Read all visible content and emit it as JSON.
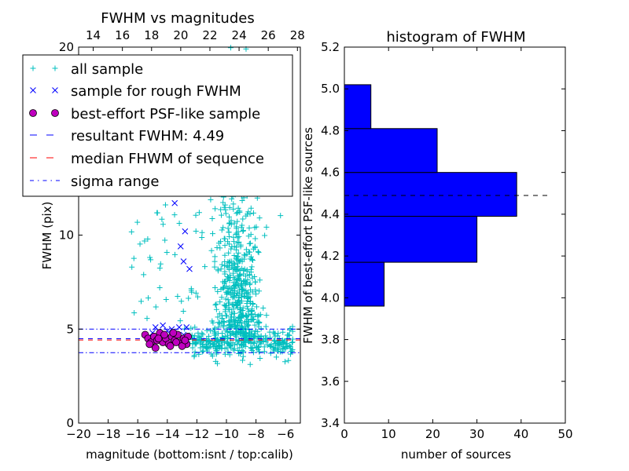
{
  "colors": {
    "all_sample": "#00bfbf",
    "rough_sample": "#0000ff",
    "psf_face": "#bf00bf",
    "resultant_line": "#0000ff",
    "median_line": "#ff0000",
    "sigma_line": "#0000ff",
    "hist_bar": "#0000ff",
    "hist_line": "#000000"
  },
  "chart_data": [
    {
      "type": "scatter",
      "title": "FWHM vs magnitudes",
      "xlabel": "magnitude (bottom:isnt / top:calib)",
      "ylabel": "FWHM (pix)",
      "xlim": [
        -20,
        -5
      ],
      "ylim": [
        0,
        20
      ],
      "top_xlim": [
        13,
        28.2
      ],
      "xticks": [
        -20,
        -18,
        -16,
        -14,
        -12,
        -10,
        -8,
        -6
      ],
      "xtick_labels": [
        "−20",
        "−18",
        "−16",
        "−14",
        "−12",
        "−10",
        "−8",
        "−6"
      ],
      "top_xticks": [
        14,
        16,
        18,
        20,
        22,
        24,
        26,
        28
      ],
      "top_xtick_labels": [
        "14",
        "16",
        "18",
        "20",
        "22",
        "24",
        "26",
        "28"
      ],
      "yticks": [
        0,
        5,
        10,
        20
      ],
      "ytick_labels": [
        "0",
        "5",
        "10",
        "20"
      ],
      "legend": {
        "location": "upper-left",
        "entries": [
          "all sample",
          "sample for rough FWHM",
          "best-effort PSF-like sample",
          "resultant FWHM: 4.49",
          "median FHWM of sequence",
          "sigma range"
        ]
      },
      "hlines": {
        "resultant_fwhm": 4.49,
        "median_fwhm": 4.42,
        "sigma_upper": 5.0,
        "sigma_lower": 3.75
      },
      "series": [
        {
          "name": "sample for rough FWHM",
          "marker": "x",
          "points": [
            [
              -13.5,
              11.7
            ],
            [
              -12.8,
              10.2
            ],
            [
              -13.1,
              9.4
            ],
            [
              -12.9,
              8.6
            ],
            [
              -12.5,
              8.2
            ],
            [
              -14.8,
              5.1
            ],
            [
              -14.3,
              5.2
            ],
            [
              -13.7,
              5.0
            ],
            [
              -13.2,
              5.1
            ],
            [
              -12.7,
              5.1
            ],
            [
              -14.0,
              4.9
            ],
            [
              -15.0,
              4.8
            ],
            [
              -12.9,
              4.7
            ],
            [
              -13.5,
              4.7
            ],
            [
              -14.5,
              4.7
            ]
          ]
        },
        {
          "name": "best-effort PSF-like sample",
          "marker": "o",
          "points": [
            [
              -15.5,
              4.7
            ],
            [
              -15.3,
              4.5
            ],
            [
              -15.1,
              4.3
            ],
            [
              -14.9,
              4.6
            ],
            [
              -14.7,
              4.4
            ],
            [
              -14.5,
              4.8
            ],
            [
              -14.3,
              4.3
            ],
            [
              -14.1,
              4.5
            ],
            [
              -13.9,
              4.2
            ],
            [
              -13.7,
              4.6
            ],
            [
              -13.5,
              4.4
            ],
            [
              -13.3,
              4.7
            ],
            [
              -13.1,
              4.3
            ],
            [
              -12.9,
              4.5
            ],
            [
              -12.7,
              4.2
            ],
            [
              -12.6,
              4.6
            ],
            [
              -15.2,
              4.2
            ],
            [
              -14.8,
              4.0
            ],
            [
              -14.2,
              4.7
            ],
            [
              -13.8,
              4.1
            ],
            [
              -13.4,
              4.3
            ],
            [
              -13.0,
              4.1
            ],
            [
              -12.8,
              4.4
            ],
            [
              -14.6,
              4.5
            ],
            [
              -13.6,
              4.8
            ]
          ]
        }
      ]
    },
    {
      "type": "bar",
      "orientation": "horizontal",
      "title": "histogram of FWHM",
      "xlabel": "number of sources",
      "ylabel": "FWHM of best-effort PSF-like sources",
      "xlim": [
        0,
        50
      ],
      "ylim": [
        3.4,
        5.2
      ],
      "xticks": [
        0,
        10,
        20,
        30,
        40,
        50
      ],
      "xtick_labels": [
        "0",
        "10",
        "20",
        "30",
        "40",
        "50"
      ],
      "yticks": [
        3.4,
        3.6,
        3.8,
        4.0,
        4.2,
        4.4,
        4.6,
        4.8,
        5.0,
        5.2
      ],
      "ytick_labels": [
        "3.4",
        "3.6",
        "3.8",
        "4.0",
        "4.2",
        "4.4",
        "4.6",
        "4.8",
        "5.0",
        "5.2"
      ],
      "bins": [
        {
          "from": 3.96,
          "to": 4.17,
          "count": 9
        },
        {
          "from": 4.17,
          "to": 4.39,
          "count": 30
        },
        {
          "from": 4.39,
          "to": 4.6,
          "count": 39
        },
        {
          "from": 4.6,
          "to": 4.81,
          "count": 21
        },
        {
          "from": 4.81,
          "to": 5.02,
          "count": 6
        }
      ],
      "hline": {
        "value": 4.49,
        "x_to": 46
      }
    }
  ]
}
